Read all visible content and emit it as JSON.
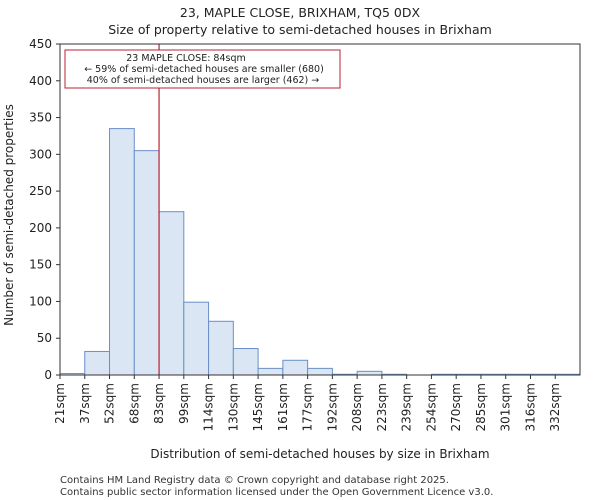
{
  "chart_data": {
    "type": "bar",
    "title_lines": [
      "23, MAPLE CLOSE, BRIXHAM, TQ5 0DX",
      "Size of property relative to semi-detached houses in Brixham"
    ],
    "xlabel": "Distribution of semi-detached houses by size in Brixham",
    "ylabel": "Number of semi-detached properties",
    "ylim": [
      0,
      450
    ],
    "yticks": [
      0,
      50,
      100,
      150,
      200,
      250,
      300,
      350,
      400,
      450
    ],
    "categories": [
      "21sqm",
      "37sqm",
      "52sqm",
      "68sqm",
      "83sqm",
      "99sqm",
      "114sqm",
      "130sqm",
      "145sqm",
      "161sqm",
      "177sqm",
      "192sqm",
      "208sqm",
      "223sqm",
      "239sqm",
      "254sqm",
      "270sqm",
      "285sqm",
      "301sqm",
      "316sqm",
      "332sqm"
    ],
    "values": [
      2,
      32,
      335,
      305,
      222,
      99,
      73,
      36,
      9,
      20,
      9,
      1,
      5,
      1,
      0,
      1,
      1,
      1,
      1,
      1,
      1
    ],
    "bar_color": "#dbe6f5",
    "bar_edge_color": "#6a8fc7",
    "marker": {
      "value_sqm": 84,
      "bin_index": 4,
      "color": "#bb2233"
    },
    "annotation": {
      "lines": [
        "23 MAPLE CLOSE: 84sqm",
        "← 59% of semi-detached houses are smaller (680)",
        "40% of semi-detached houses are larger (462) →"
      ],
      "border_color": "#bb2233"
    }
  },
  "footer": {
    "line1": "Contains HM Land Registry data © Crown copyright and database right 2025.",
    "line2": "Contains public sector information licensed under the Open Government Licence v3.0."
  }
}
